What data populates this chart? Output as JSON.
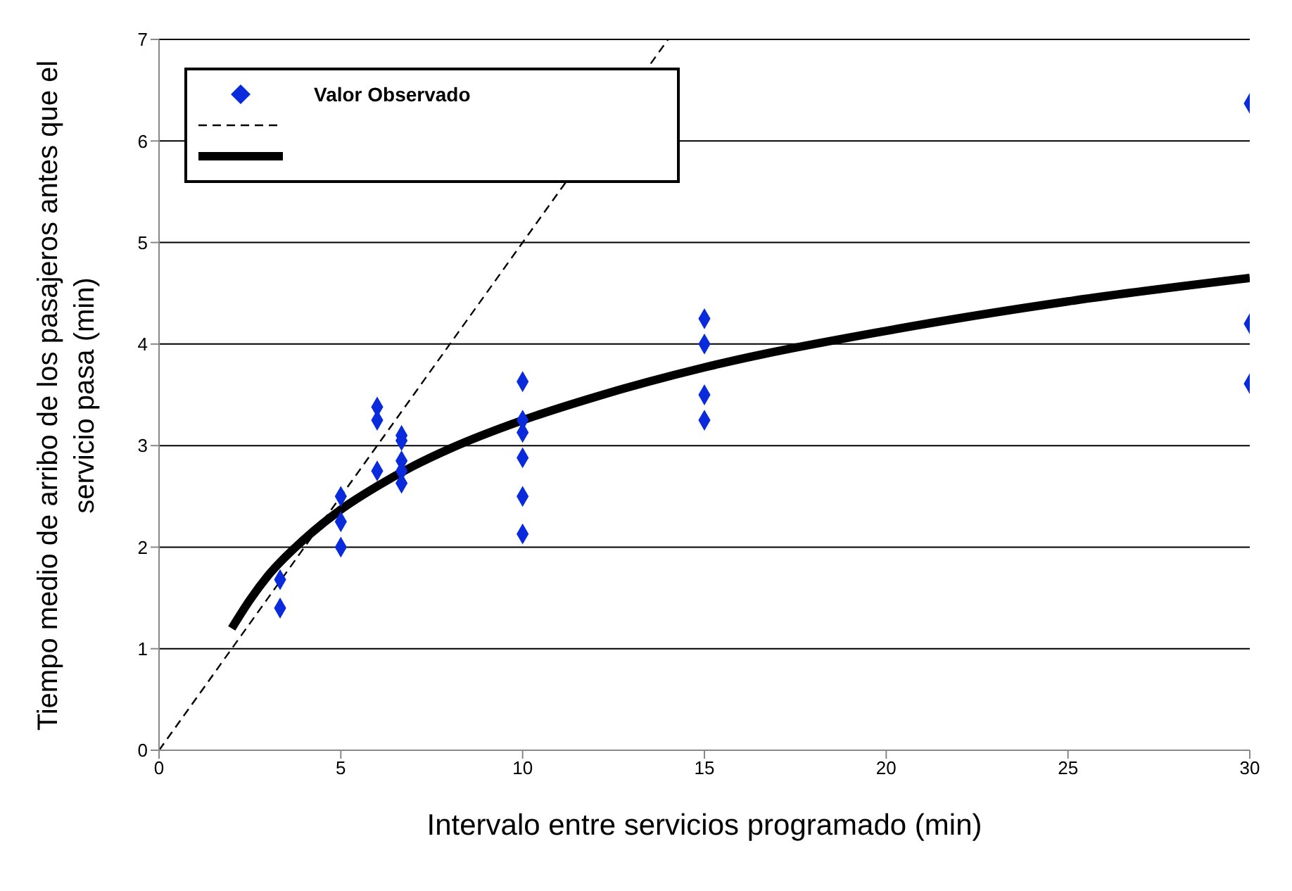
{
  "chart_data": {
    "type": "scatter",
    "xlabel": "Intervalo entre servicios programado (min)",
    "ylabel": "Tiempo medio de arribo de los pasajeros antes que el servicio pasa (min)",
    "xlim": [
      0,
      30
    ],
    "xticks": [
      0,
      5,
      10,
      15,
      20,
      25,
      30
    ],
    "ylim": [
      0,
      7
    ],
    "yticks": [
      0,
      1,
      2,
      3,
      4,
      5,
      6,
      7
    ],
    "grid": "y",
    "legend": "top left",
    "series": [
      {
        "name": "Valor Observado",
        "marker": "diamond",
        "color": "#0a2bdb",
        "x": [
          3.33,
          3.33,
          5,
          5,
          5,
          6,
          6,
          6,
          6.67,
          6.67,
          6.67,
          6.67,
          6.67,
          10,
          10,
          10,
          10,
          10,
          10,
          15,
          15,
          15,
          15,
          30,
          30,
          30
        ],
        "values": [
          1.68,
          1.4,
          2.5,
          2.25,
          2.0,
          3.38,
          3.25,
          2.75,
          3.1,
          3.05,
          2.85,
          2.75,
          2.63,
          3.63,
          3.25,
          3.13,
          2.88,
          2.5,
          2.13,
          4.25,
          4.0,
          3.5,
          3.25,
          6.37,
          4.2,
          3.61
        ]
      },
      {
        "type": "line",
        "marker": "none",
        "line_style": "dashed",
        "color": "#000000",
        "x": [
          0,
          14
        ],
        "values": [
          0,
          7
        ]
      },
      {
        "type": "line",
        "marker": "none",
        "line_style": "solid",
        "color": "#000000",
        "x": [
          2,
          2.5,
          3,
          4,
          5,
          6,
          7,
          8,
          10,
          12,
          15,
          20,
          25,
          30
        ],
        "values": [
          1.2,
          1.48,
          1.72,
          2.08,
          2.37,
          2.6,
          2.8,
          2.97,
          3.25,
          3.48,
          3.77,
          4.13,
          4.42,
          4.65
        ]
      }
    ]
  }
}
